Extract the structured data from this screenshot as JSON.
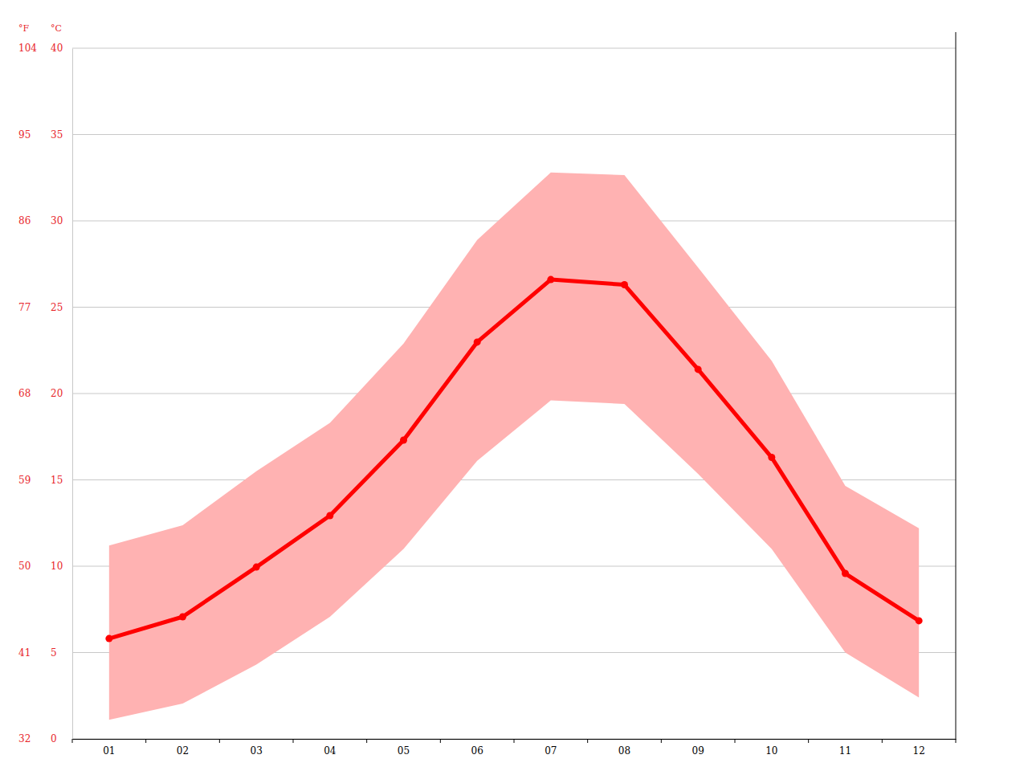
{
  "chart_data": {
    "type": "line",
    "y_label": "°C",
    "y2_label": "°F",
    "categories": [
      "01",
      "02",
      "03",
      "04",
      "05",
      "06",
      "07",
      "08",
      "09",
      "10",
      "11",
      "12"
    ],
    "series": [
      {
        "type": "area",
        "color": "#ffb2b2",
        "low": [
          1.1,
          2.05,
          4.3,
          7.07,
          11.0,
          16.1,
          19.6,
          19.4,
          15.35,
          11.0,
          5.0,
          2.4
        ],
        "high": [
          11.2,
          12.37,
          15.5,
          18.3,
          22.9,
          28.9,
          32.8,
          32.65,
          27.3,
          21.9,
          14.65,
          12.2
        ]
      },
      {
        "type": "line",
        "color": "#ff0000",
        "marker": "circle",
        "values": [
          5.81,
          7.07,
          9.95,
          12.93,
          17.3,
          22.98,
          26.6,
          26.3,
          21.4,
          16.3,
          9.58,
          6.84
        ]
      }
    ],
    "ylim": [
      0,
      40
    ],
    "yticks": [
      0,
      5,
      10,
      15,
      20,
      25,
      30,
      35,
      40
    ],
    "y2lim": [
      32,
      104
    ],
    "y2ticks": [
      32,
      41,
      50,
      59,
      68,
      77,
      86,
      95,
      104
    ],
    "grid": true
  }
}
